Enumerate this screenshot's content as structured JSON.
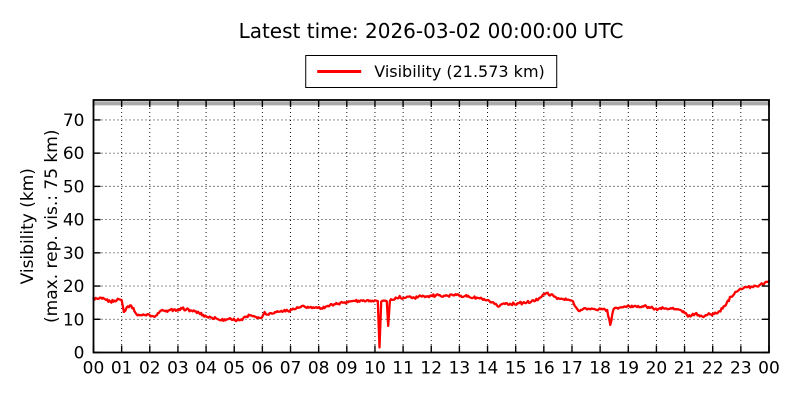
{
  "title": "Latest time: 2026-03-02 00:00:00 UTC",
  "latest_time_utc": "2026-03-02 00:00:00",
  "legend": {
    "label": "Visibility (21.573 km)"
  },
  "colors": {
    "line": "#ff0000",
    "max_vis_line": "#aaaaaa",
    "frame": "#000000",
    "grid": "#000000",
    "background": "#ffffff"
  },
  "chart_data": {
    "type": "line",
    "title": "Latest time: 2026-03-02 00:00:00 UTC",
    "ylabel": [
      "Visibility (km)",
      "(max. rep. vis.: 75 km)"
    ],
    "xlabel": "",
    "legend_position": "top-center",
    "grid": "dotted",
    "xlim": [
      0,
      24
    ],
    "ylim": [
      0,
      76
    ],
    "yticks": [
      0,
      10,
      20,
      30,
      40,
      50,
      60,
      70
    ],
    "xticks": [
      0,
      1,
      2,
      3,
      4,
      5,
      6,
      7,
      8,
      9,
      10,
      11,
      12,
      13,
      14,
      15,
      16,
      17,
      18,
      19,
      20,
      21,
      22,
      23,
      24
    ],
    "x_tick_labels": [
      "00",
      "01",
      "02",
      "03",
      "04",
      "05",
      "06",
      "07",
      "08",
      "09",
      "10",
      "11",
      "12",
      "13",
      "14",
      "15",
      "16",
      "17",
      "18",
      "19",
      "20",
      "21",
      "22",
      "23",
      "00"
    ],
    "max_reported_visibility_km": 75,
    "latest_value_km": 21.573,
    "series": [
      {
        "name": "Visibility (21.573 km)",
        "color": "#ff0000",
        "x_unit": "hour UTC",
        "y_unit": "km",
        "points": [
          [
            0.0,
            16.3
          ],
          [
            0.15,
            16.1
          ],
          [
            0.3,
            16.2
          ],
          [
            0.45,
            15.8
          ],
          [
            0.6,
            15.3
          ],
          [
            0.75,
            15.6
          ],
          [
            0.9,
            16.0
          ],
          [
            1.0,
            15.8
          ],
          [
            1.08,
            12.2
          ],
          [
            1.18,
            13.6
          ],
          [
            1.3,
            14.2
          ],
          [
            1.42,
            13.4
          ],
          [
            1.52,
            11.6
          ],
          [
            1.65,
            11.2
          ],
          [
            1.8,
            11.3
          ],
          [
            1.95,
            11.5
          ],
          [
            2.1,
            11.0
          ],
          [
            2.25,
            11.2
          ],
          [
            2.4,
            12.6
          ],
          [
            2.55,
            12.4
          ],
          [
            2.7,
            12.7
          ],
          [
            2.85,
            12.9
          ],
          [
            3.0,
            12.6
          ],
          [
            3.15,
            13.2
          ],
          [
            3.3,
            13.0
          ],
          [
            3.45,
            12.7
          ],
          [
            3.6,
            12.4
          ],
          [
            3.75,
            11.9
          ],
          [
            3.9,
            11.3
          ],
          [
            4.05,
            10.7
          ],
          [
            4.2,
            10.5
          ],
          [
            4.35,
            10.3
          ],
          [
            4.5,
            9.7
          ],
          [
            4.65,
            10.0
          ],
          [
            4.8,
            10.1
          ],
          [
            4.95,
            9.8
          ],
          [
            5.1,
            9.7
          ],
          [
            5.25,
            10.0
          ],
          [
            5.4,
            10.7
          ],
          [
            5.55,
            11.2
          ],
          [
            5.7,
            11.0
          ],
          [
            5.85,
            10.6
          ],
          [
            5.98,
            10.5
          ],
          [
            6.08,
            12.2
          ],
          [
            6.18,
            11.4
          ],
          [
            6.3,
            11.9
          ],
          [
            6.45,
            12.2
          ],
          [
            6.6,
            12.3
          ],
          [
            6.75,
            12.4
          ],
          [
            6.9,
            12.6
          ],
          [
            7.05,
            12.9
          ],
          [
            7.2,
            13.2
          ],
          [
            7.35,
            13.6
          ],
          [
            7.5,
            13.8
          ],
          [
            7.65,
            13.5
          ],
          [
            7.8,
            13.6
          ],
          [
            7.95,
            13.4
          ],
          [
            8.1,
            13.3
          ],
          [
            8.25,
            13.8
          ],
          [
            8.4,
            14.2
          ],
          [
            8.55,
            14.5
          ],
          [
            8.7,
            14.7
          ],
          [
            8.85,
            15.0
          ],
          [
            9.0,
            15.2
          ],
          [
            9.15,
            15.4
          ],
          [
            9.3,
            15.5
          ],
          [
            9.45,
            15.3
          ],
          [
            9.6,
            15.7
          ],
          [
            9.75,
            15.8
          ],
          [
            9.9,
            15.6
          ],
          [
            10.0,
            15.7
          ],
          [
            10.1,
            15.5
          ],
          [
            10.16,
            1.5
          ],
          [
            10.22,
            15.3
          ],
          [
            10.32,
            15.6
          ],
          [
            10.42,
            15.4
          ],
          [
            10.47,
            8.0
          ],
          [
            10.53,
            15.5
          ],
          [
            10.65,
            15.9
          ],
          [
            10.78,
            16.4
          ],
          [
            10.88,
            17.0
          ],
          [
            10.98,
            16.2
          ],
          [
            11.1,
            16.5
          ],
          [
            11.25,
            16.9
          ],
          [
            11.4,
            16.4
          ],
          [
            11.55,
            16.8
          ],
          [
            11.7,
            17.1
          ],
          [
            11.85,
            16.8
          ],
          [
            12.0,
            17.2
          ],
          [
            12.15,
            17.0
          ],
          [
            12.3,
            17.3
          ],
          [
            12.45,
            17.1
          ],
          [
            12.6,
            17.0
          ],
          [
            12.75,
            17.4
          ],
          [
            12.9,
            17.3
          ],
          [
            13.05,
            17.1
          ],
          [
            13.2,
            17.0
          ],
          [
            13.35,
            16.7
          ],
          [
            13.5,
            16.5
          ],
          [
            13.65,
            16.4
          ],
          [
            13.8,
            16.2
          ],
          [
            13.95,
            15.7
          ],
          [
            14.1,
            15.1
          ],
          [
            14.25,
            14.6
          ],
          [
            14.38,
            13.8
          ],
          [
            14.5,
            14.5
          ],
          [
            14.65,
            14.8
          ],
          [
            14.8,
            14.7
          ],
          [
            14.95,
            14.6
          ],
          [
            15.1,
            14.8
          ],
          [
            15.25,
            14.9
          ],
          [
            15.4,
            15.1
          ],
          [
            15.55,
            15.3
          ],
          [
            15.7,
            15.6
          ],
          [
            15.85,
            16.5
          ],
          [
            16.0,
            17.6
          ],
          [
            16.1,
            17.9
          ],
          [
            16.25,
            17.4
          ],
          [
            16.4,
            16.8
          ],
          [
            16.55,
            16.2
          ],
          [
            16.7,
            16.0
          ],
          [
            16.85,
            15.9
          ],
          [
            17.0,
            15.6
          ],
          [
            17.1,
            14.0
          ],
          [
            17.2,
            12.9
          ],
          [
            17.35,
            12.8
          ],
          [
            17.5,
            13.2
          ],
          [
            17.65,
            13.0
          ],
          [
            17.8,
            13.1
          ],
          [
            17.95,
            13.0
          ],
          [
            18.1,
            13.0
          ],
          [
            18.25,
            12.8
          ],
          [
            18.36,
            8.3
          ],
          [
            18.47,
            12.9
          ],
          [
            18.6,
            13.4
          ],
          [
            18.75,
            13.6
          ],
          [
            18.9,
            13.8
          ],
          [
            19.05,
            13.8
          ],
          [
            19.2,
            13.9
          ],
          [
            19.35,
            14.0
          ],
          [
            19.5,
            13.9
          ],
          [
            19.65,
            13.8
          ],
          [
            19.8,
            13.5
          ],
          [
            19.95,
            13.1
          ],
          [
            20.1,
            13.2
          ],
          [
            20.25,
            13.3
          ],
          [
            20.4,
            13.0
          ],
          [
            20.55,
            13.2
          ],
          [
            20.7,
            13.0
          ],
          [
            20.85,
            12.8
          ],
          [
            21.0,
            11.9
          ],
          [
            21.12,
            10.8
          ],
          [
            21.25,
            11.1
          ],
          [
            21.38,
            11.7
          ],
          [
            21.5,
            11.3
          ],
          [
            21.62,
            10.9
          ],
          [
            21.75,
            11.3
          ],
          [
            21.9,
            11.5
          ],
          [
            22.05,
            11.6
          ],
          [
            22.2,
            12.2
          ],
          [
            22.35,
            13.2
          ],
          [
            22.5,
            15.0
          ],
          [
            22.65,
            16.8
          ],
          [
            22.8,
            18.2
          ],
          [
            22.95,
            19.0
          ],
          [
            23.1,
            19.4
          ],
          [
            23.25,
            19.7
          ],
          [
            23.4,
            19.8
          ],
          [
            23.55,
            20.0
          ],
          [
            23.7,
            20.5
          ],
          [
            23.85,
            21.0
          ],
          [
            24.0,
            21.573
          ]
        ]
      }
    ]
  }
}
